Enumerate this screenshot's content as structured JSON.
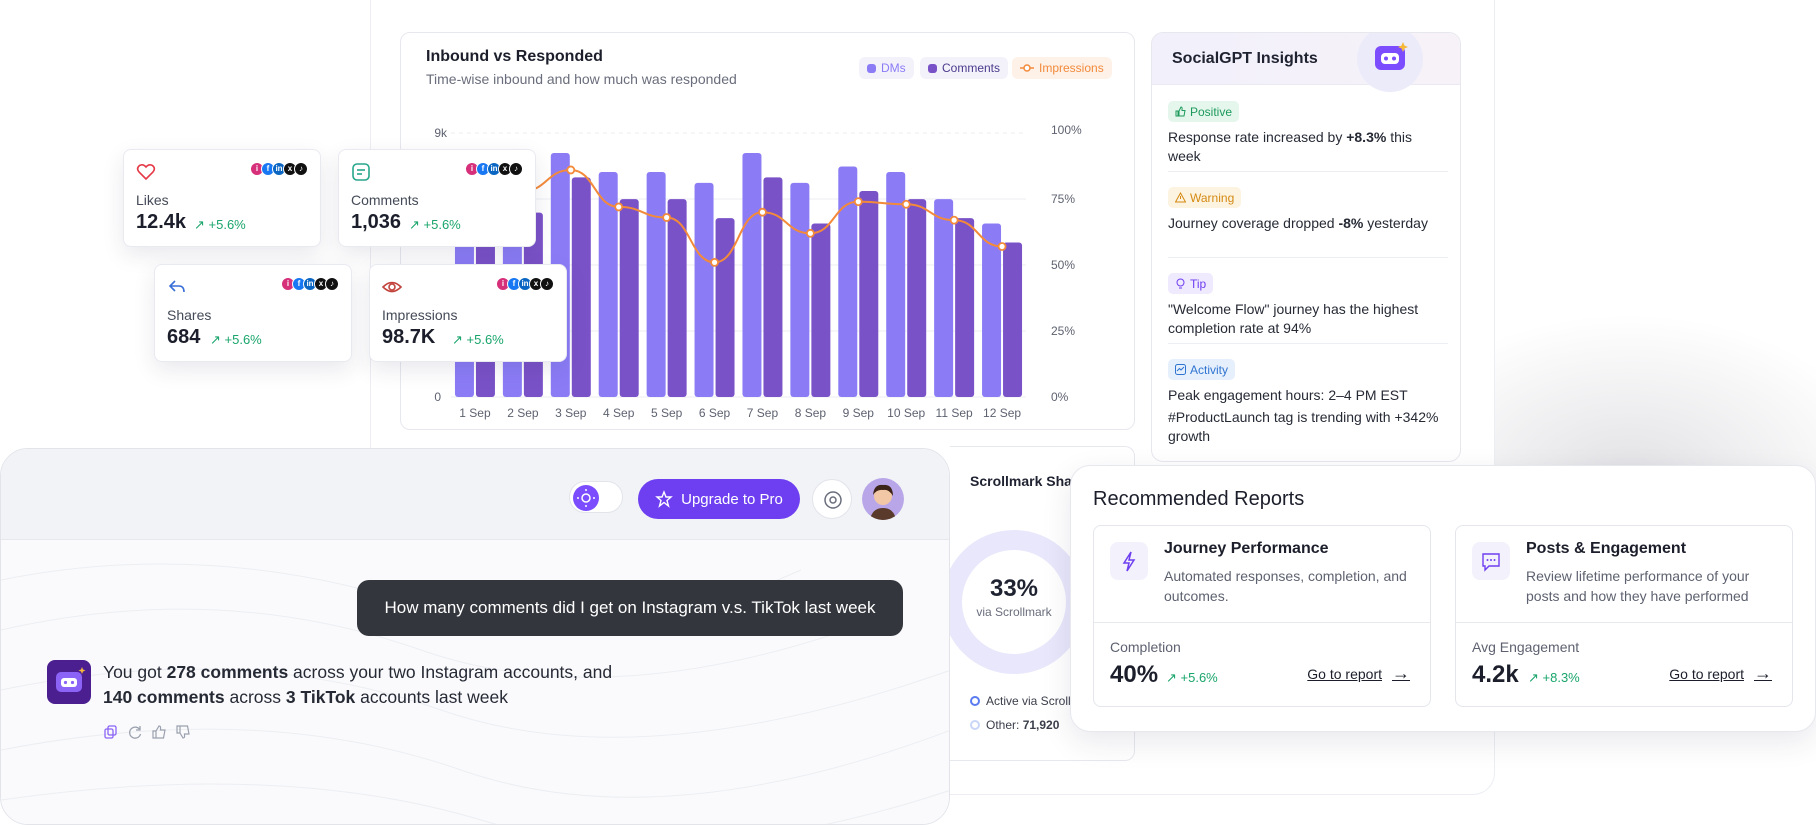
{
  "chart_data": {
    "type": "bar",
    "title": "Inbound vs Responded",
    "subtitle": "Time-wise inbound and how much was responded",
    "categories": [
      "1 Sep",
      "2 Sep",
      "3 Sep",
      "4 Sep",
      "5 Sep",
      "6 Sep",
      "7 Sep",
      "8 Sep",
      "9 Sep",
      "10 Sep",
      "11 Sep",
      "12 Sep"
    ],
    "series": [
      {
        "name": "DMs",
        "type": "bar",
        "color": "#8b7cf6",
        "values": [
          6.8,
          5.8,
          9.0,
          8.3,
          8.3,
          7.9,
          9.0,
          7.9,
          8.5,
          8.3,
          7.3,
          6.4
        ]
      },
      {
        "name": "Comments",
        "type": "bar",
        "color": "#7a52c8",
        "values": [
          5.8,
          6.8,
          8.1,
          7.3,
          7.3,
          6.6,
          8.1,
          6.4,
          7.6,
          7.3,
          6.6,
          5.7
        ]
      },
      {
        "name": "Impressions",
        "type": "line",
        "color": "#f38a3a",
        "axis": "right",
        "values": [
          70,
          78,
          86,
          72,
          68,
          51,
          70,
          62,
          74,
          73,
          67,
          57
        ]
      }
    ],
    "y_left": {
      "ticks": [
        "0",
        "9k"
      ],
      "max": 9
    },
    "y_right": {
      "ticks": [
        "100%",
        "75%",
        "50%",
        "25%",
        "0%"
      ]
    }
  },
  "insights": {
    "title": "SocialGPT Insights",
    "items": [
      {
        "badge": "Positive",
        "text_pre": "Response rate increased by ",
        "text_bold": "+8.3%",
        "text_post": " this week"
      },
      {
        "badge": "Warning",
        "text_pre": "Journey coverage dropped ",
        "text_bold": "-8%",
        "text_post": " yesterday"
      },
      {
        "badge": "Tip",
        "text": "\"Welcome Flow\" journey has the highest completion rate at 94%"
      },
      {
        "badge": "Activity",
        "text": "Peak engagement hours: 2–4 PM EST",
        "text2": "#ProductLaunch tag is trending with +342% growth"
      }
    ]
  },
  "stats": [
    {
      "label": "Likes",
      "value": "12.4k",
      "change": "+5.6%"
    },
    {
      "label": "Comments",
      "value": "1,036",
      "change": "+5.6%"
    },
    {
      "label": "Shares",
      "value": "684",
      "change": "+5.6%"
    },
    {
      "label": "Impressions",
      "value": "98.7K",
      "change": "+5.6%"
    }
  ],
  "chat": {
    "upgrade_label": "Upgrade to Pro",
    "user_message": "How many comments did I get on Instagram v.s. TikTok last week",
    "bot": {
      "p1": "You got ",
      "b1": "278 comments",
      "p2": " across your two Instagram accounts, and",
      "b2": "140 comments",
      "p3": " across ",
      "b3": "3 TikTok",
      "p4": " accounts last week"
    }
  },
  "share": {
    "title": "Scrollmark Share",
    "pct": "33%",
    "via": "via Scrollmark",
    "legend_active": "Active via Scrollmark",
    "legend_other_label": "Other: ",
    "legend_other_value": "71,920"
  },
  "reports": {
    "title": "Recommended Reports",
    "items": [
      {
        "name": "Journey Performance",
        "desc": "Automated responses, completion, and outcomes.",
        "metric_label": "Completion",
        "metric_value": "40%",
        "metric_change": "+5.6%",
        "link": "Go to report"
      },
      {
        "name": "Posts & Engagement",
        "desc": "Review lifetime performance of your posts and how they have performed",
        "metric_label": "Avg Engagement",
        "metric_value": "4.2k",
        "metric_change": "+8.3%",
        "link": "Go to report"
      }
    ]
  },
  "colors": {
    "accent": "#6e3ff0",
    "positive": "#19a56b",
    "orange": "#f38a3a"
  }
}
